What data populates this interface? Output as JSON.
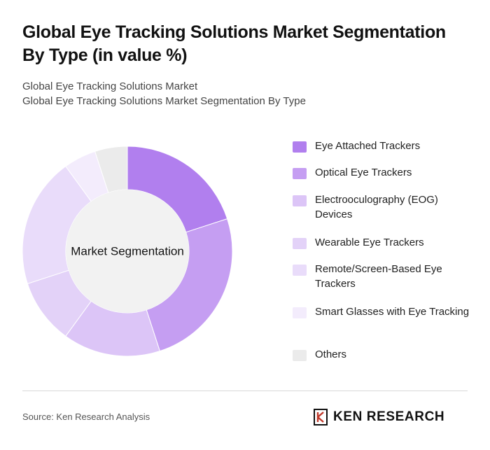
{
  "header": {
    "title": "Global Eye Tracking Solutions Market Segmentation By Type (in value %)",
    "subtitle_line1": "Global Eye Tracking Solutions Market",
    "subtitle_line2": "Global Eye Tracking Solutions Market Segmentation By Type"
  },
  "chart_data": {
    "type": "pie",
    "variant": "donut",
    "center_label": "Market Segmentation",
    "unit": "%",
    "legend_position": "right",
    "slices": [
      {
        "name": "Eye Attached Trackers",
        "value": 20,
        "color": "#b17fee"
      },
      {
        "name": "Optical Eye Trackers",
        "value": 25,
        "color": "#c59ef2"
      },
      {
        "name": "Electrooculography (EOG) Devices",
        "value": 15,
        "color": "#dcc5f7"
      },
      {
        "name": "Wearable Eye Trackers",
        "value": 10,
        "color": "#e3d2f8"
      },
      {
        "name": "Remote/Screen-Based Eye Trackers",
        "value": 20,
        "color": "#e9dcfa"
      },
      {
        "name": "Smart Glasses with Eye Tracking",
        "value": 5,
        "color": "#f3ecfc"
      },
      {
        "name": "Others",
        "value": 5,
        "color": "#ebebeb"
      }
    ]
  },
  "footer": {
    "source": "Source: Ken Research Analysis",
    "logo_text": "KEN RESEARCH",
    "logo_icon": "ken-research-k-icon"
  }
}
